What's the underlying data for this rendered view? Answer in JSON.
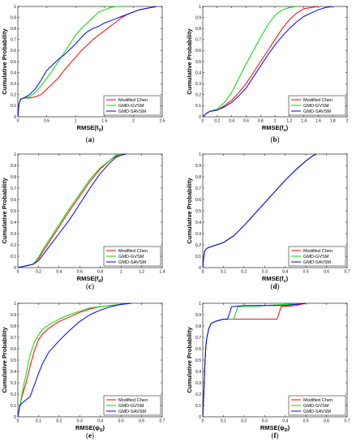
{
  "figure": {
    "colors": {
      "Modified Chen": "#ff0000",
      "GMD-GVSM": "#00dd00",
      "GMD-SAVSM": "#0000ee"
    }
  },
  "chart_data": [
    {
      "id": "a",
      "type": "line",
      "caption": "(a)",
      "ylabel": "Cumulative Probability",
      "xlabel": "RMSE(f_V)",
      "xlabel_main": "RMSE(f",
      "xlabel_sub": "V",
      "xlabel_end": ")",
      "xlim": [
        0,
        2.5
      ],
      "ylim": [
        0,
        1
      ],
      "xticks": [
        "0",
        "0.5",
        "1",
        "1.5",
        "2",
        "2.5"
      ],
      "xtick_vals": [
        0,
        0.5,
        1,
        1.5,
        2,
        2.5
      ],
      "yticks": [
        "0",
        "0.1",
        "0.2",
        "0.3",
        "0.4",
        "0.5",
        "0.6",
        "0.7",
        "0.8",
        "0.9",
        "1"
      ],
      "legend": [
        "Modified Chen",
        "GMD-GVSM",
        "GMD-SAVSM"
      ],
      "legend_position": "bottom-right",
      "series": [
        {
          "name": "Modified Chen",
          "color": "#ff0000",
          "x": [
            0,
            0.02,
            0.05,
            0.1,
            0.2,
            0.3,
            0.4,
            0.5,
            0.6,
            0.7,
            0.8,
            0.9,
            1.0,
            1.1,
            1.2,
            1.3,
            1.4,
            1.5,
            1.6,
            1.7,
            1.8,
            1.9,
            2.0,
            2.1,
            2.2,
            2.3,
            2.4
          ],
          "y": [
            0,
            0.12,
            0.16,
            0.17,
            0.17,
            0.18,
            0.2,
            0.25,
            0.3,
            0.35,
            0.42,
            0.48,
            0.54,
            0.6,
            0.65,
            0.7,
            0.74,
            0.78,
            0.82,
            0.86,
            0.9,
            0.93,
            0.95,
            0.97,
            0.98,
            0.99,
            1.0
          ]
        },
        {
          "name": "GMD-GVSM",
          "color": "#00dd00",
          "x": [
            0,
            0.02,
            0.05,
            0.1,
            0.2,
            0.3,
            0.4,
            0.5,
            0.6,
            0.7,
            0.8,
            0.9,
            1.0,
            1.1,
            1.2,
            1.3,
            1.4,
            1.5,
            1.6,
            1.7,
            1.8
          ],
          "y": [
            0,
            0.12,
            0.16,
            0.17,
            0.18,
            0.22,
            0.28,
            0.35,
            0.42,
            0.5,
            0.58,
            0.66,
            0.74,
            0.8,
            0.85,
            0.9,
            0.95,
            0.97,
            0.99,
            1.0,
            1.0
          ]
        },
        {
          "name": "GMD-SAVSM",
          "color": "#0000ee",
          "x": [
            0,
            0.02,
            0.05,
            0.1,
            0.2,
            0.3,
            0.4,
            0.5,
            0.6,
            0.7,
            0.8,
            0.9,
            1.0,
            1.1,
            1.2,
            1.3,
            1.4,
            1.5,
            1.6,
            1.7,
            1.8,
            1.9,
            2.0,
            2.1,
            2.2,
            2.3,
            2.4
          ],
          "y": [
            0,
            0.12,
            0.16,
            0.17,
            0.2,
            0.25,
            0.33,
            0.42,
            0.47,
            0.52,
            0.56,
            0.61,
            0.66,
            0.72,
            0.77,
            0.8,
            0.82,
            0.85,
            0.87,
            0.89,
            0.91,
            0.93,
            0.95,
            0.97,
            0.98,
            0.99,
            1.0
          ]
        }
      ]
    },
    {
      "id": "b",
      "type": "line",
      "caption": "(b)",
      "ylabel": "Cumulative Probability",
      "xlabel": "RMSE(f_s)",
      "xlabel_main": "RMSE(f",
      "xlabel_sub": "s",
      "xlabel_end": ")",
      "xlim": [
        0,
        2
      ],
      "ylim": [
        0,
        1
      ],
      "xticks": [
        "0",
        "0.2",
        "0.4",
        "0.6",
        "0.8",
        "1",
        "1.2",
        "1.4",
        "1.6",
        "1.8",
        "2"
      ],
      "xtick_vals": [
        0,
        0.2,
        0.4,
        0.6,
        0.8,
        1,
        1.2,
        1.4,
        1.6,
        1.8,
        2
      ],
      "yticks": [
        "0",
        "0.1",
        "0.2",
        "0.3",
        "0.4",
        "0.5",
        "0.6",
        "0.7",
        "0.8",
        "0.9",
        "1"
      ],
      "legend": [
        "Modified Chen",
        "GMD-GVSM",
        "GMD-SAVSM"
      ],
      "legend_position": "bottom-right",
      "series": [
        {
          "name": "Modified Chen",
          "color": "#ff0000",
          "x": [
            0,
            0.05,
            0.1,
            0.2,
            0.3,
            0.4,
            0.5,
            0.6,
            0.7,
            0.8,
            0.9,
            1.0,
            1.1,
            1.2,
            1.3,
            1.4,
            1.5,
            1.6
          ],
          "y": [
            0,
            0.03,
            0.05,
            0.06,
            0.1,
            0.15,
            0.22,
            0.3,
            0.4,
            0.5,
            0.6,
            0.7,
            0.8,
            0.88,
            0.94,
            0.98,
            0.99,
            1.0
          ]
        },
        {
          "name": "GMD-GVSM",
          "color": "#00dd00",
          "x": [
            0,
            0.05,
            0.1,
            0.2,
            0.3,
            0.4,
            0.5,
            0.6,
            0.7,
            0.8,
            0.9,
            1.0,
            1.1,
            1.2,
            1.3
          ],
          "y": [
            0,
            0.03,
            0.05,
            0.07,
            0.13,
            0.22,
            0.35,
            0.48,
            0.6,
            0.72,
            0.83,
            0.92,
            0.97,
            0.99,
            1.0
          ]
        },
        {
          "name": "GMD-SAVSM",
          "color": "#0000ee",
          "x": [
            0,
            0.05,
            0.1,
            0.2,
            0.3,
            0.4,
            0.5,
            0.6,
            0.7,
            0.8,
            0.9,
            1.0,
            1.1,
            1.2,
            1.3,
            1.4,
            1.5,
            1.6,
            1.7,
            1.8
          ],
          "y": [
            0,
            0.03,
            0.05,
            0.06,
            0.09,
            0.13,
            0.19,
            0.26,
            0.36,
            0.46,
            0.56,
            0.65,
            0.73,
            0.8,
            0.86,
            0.91,
            0.94,
            0.97,
            0.99,
            1.0
          ]
        }
      ]
    },
    {
      "id": "c",
      "type": "line",
      "caption": "(c)",
      "ylabel": "Cumulative Probability",
      "xlabel": "RMSE(f_d)",
      "xlabel_main": "RMSE(f",
      "xlabel_sub": "d",
      "xlabel_end": ")",
      "xlim": [
        0,
        1.4
      ],
      "ylim": [
        0,
        1
      ],
      "xticks": [
        "0",
        "0.2",
        "0.4",
        "0.6",
        "0.8",
        "1",
        "1.2",
        "1.4"
      ],
      "xtick_vals": [
        0,
        0.2,
        0.4,
        0.6,
        0.8,
        1,
        1.2,
        1.4
      ],
      "yticks": [
        "0",
        "0.1",
        "0.2",
        "0.3",
        "0.4",
        "0.5",
        "0.6",
        "0.7",
        "0.8",
        "0.9",
        "1"
      ],
      "legend": [
        "Modified Chen",
        "GMD-GVSM",
        "GMD-SAVSM"
      ],
      "legend_position": "bottom-right",
      "series": [
        {
          "name": "Modified Chen",
          "color": "#ff0000",
          "x": [
            0,
            0.1,
            0.15,
            0.2,
            0.25,
            0.3,
            0.4,
            0.5,
            0.6,
            0.7,
            0.8,
            0.9,
            0.95,
            1.0,
            1.05
          ],
          "y": [
            0,
            0.02,
            0.03,
            0.08,
            0.15,
            0.22,
            0.36,
            0.5,
            0.63,
            0.76,
            0.87,
            0.95,
            0.98,
            1.0,
            1.0
          ]
        },
        {
          "name": "GMD-GVSM",
          "color": "#00dd00",
          "x": [
            0,
            0.1,
            0.15,
            0.2,
            0.25,
            0.3,
            0.4,
            0.5,
            0.6,
            0.7,
            0.8,
            0.9,
            0.95,
            1.0
          ],
          "y": [
            0,
            0.02,
            0.03,
            0.09,
            0.17,
            0.24,
            0.38,
            0.52,
            0.65,
            0.78,
            0.88,
            0.95,
            0.99,
            1.0
          ]
        },
        {
          "name": "GMD-SAVSM",
          "color": "#0000ee",
          "x": [
            0,
            0.1,
            0.15,
            0.2,
            0.25,
            0.3,
            0.4,
            0.5,
            0.6,
            0.7,
            0.8,
            0.9,
            0.95,
            1.0,
            1.05
          ],
          "y": [
            0,
            0.02,
            0.03,
            0.06,
            0.12,
            0.18,
            0.3,
            0.42,
            0.56,
            0.7,
            0.83,
            0.93,
            0.97,
            0.99,
            1.0
          ]
        }
      ]
    },
    {
      "id": "d",
      "type": "line",
      "caption": "(d)",
      "ylabel": "Cumulative Probability",
      "xlabel": "RMSE(f_c)",
      "xlabel_main": "RMSE(f",
      "xlabel_sub": "c",
      "xlabel_end": ")",
      "xlim": [
        0,
        0.7
      ],
      "ylim": [
        0,
        1
      ],
      "xticks": [
        "0",
        "0.1",
        "0.2",
        "0.3",
        "0.4",
        "0.5",
        "0.6",
        "0.7"
      ],
      "xtick_vals": [
        0,
        0.1,
        0.2,
        0.3,
        0.4,
        0.5,
        0.6,
        0.7
      ],
      "yticks": [
        "0",
        "0.1",
        "0.2",
        "0.3",
        "0.4",
        "0.5",
        "0.6",
        "0.7",
        "0.8",
        "0.9",
        "1"
      ],
      "legend": [
        "Modified Chen",
        "GMD-GVSM",
        "GMD-SAVSM"
      ],
      "legend_position": "bottom-right",
      "series": [
        {
          "name": "Modified Chen",
          "color": "#ff0000",
          "x": [
            0,
            0.005,
            0.01,
            0.02,
            0.05,
            0.1,
            0.15,
            0.2,
            0.25,
            0.3,
            0.35,
            0.4,
            0.45,
            0.5,
            0.53,
            0.55
          ],
          "y": [
            0,
            0.1,
            0.15,
            0.17,
            0.19,
            0.22,
            0.28,
            0.37,
            0.47,
            0.57,
            0.67,
            0.77,
            0.86,
            0.94,
            0.98,
            1.0
          ]
        },
        {
          "name": "GMD-GVSM",
          "color": "#00dd00",
          "x": [
            0,
            0.005,
            0.01,
            0.02,
            0.05,
            0.1,
            0.15,
            0.2,
            0.25,
            0.3,
            0.35,
            0.4,
            0.45,
            0.5,
            0.53,
            0.55
          ],
          "y": [
            0,
            0.1,
            0.15,
            0.17,
            0.19,
            0.22,
            0.28,
            0.37,
            0.47,
            0.57,
            0.67,
            0.77,
            0.86,
            0.94,
            0.98,
            1.0
          ]
        },
        {
          "name": "GMD-SAVSM",
          "color": "#0000ee",
          "x": [
            0,
            0.005,
            0.01,
            0.02,
            0.05,
            0.1,
            0.15,
            0.2,
            0.25,
            0.3,
            0.35,
            0.4,
            0.45,
            0.5,
            0.53,
            0.55
          ],
          "y": [
            0,
            0.1,
            0.15,
            0.17,
            0.19,
            0.22,
            0.28,
            0.37,
            0.47,
            0.57,
            0.67,
            0.77,
            0.86,
            0.94,
            0.98,
            1.0
          ]
        }
      ]
    },
    {
      "id": "e",
      "type": "line",
      "caption": "(e)",
      "ylabel": "Cumulative Probability",
      "xlabel": "RMSE(ψ_S)",
      "xlabel_main": "RMSE(ψ",
      "xlabel_sub": "S",
      "xlabel_end": ")",
      "xlim": [
        0,
        0.7
      ],
      "ylim": [
        0,
        1
      ],
      "xticks": [
        "0",
        "0.1",
        "0.2",
        "0.3",
        "0.4",
        "0.5",
        "0.6",
        "0.7"
      ],
      "xtick_vals": [
        0,
        0.1,
        0.2,
        0.3,
        0.4,
        0.5,
        0.6,
        0.7
      ],
      "yticks": [
        "0",
        "0.1",
        "0.2",
        "0.3",
        "0.4",
        "0.5",
        "0.6",
        "0.7",
        "0.8",
        "0.9",
        "1"
      ],
      "legend": [
        "Modified Chen",
        "GMD-GVSM",
        "GMD-SAVSM"
      ],
      "legend_position": "bottom-right",
      "series": [
        {
          "name": "Modified Chen",
          "color": "#ff0000",
          "x": [
            0,
            0.005,
            0.01,
            0.02,
            0.04,
            0.06,
            0.08,
            0.1,
            0.12,
            0.15,
            0.2,
            0.25,
            0.3,
            0.35,
            0.4,
            0.45,
            0.5,
            0.55
          ],
          "y": [
            0,
            0.05,
            0.1,
            0.18,
            0.3,
            0.45,
            0.58,
            0.68,
            0.73,
            0.78,
            0.84,
            0.88,
            0.92,
            0.95,
            0.97,
            0.98,
            0.99,
            1.0
          ]
        },
        {
          "name": "GMD-GVSM",
          "color": "#00dd00",
          "x": [
            0,
            0.005,
            0.01,
            0.02,
            0.04,
            0.06,
            0.08,
            0.1,
            0.12,
            0.15,
            0.2,
            0.25,
            0.3,
            0.35,
            0.4,
            0.45,
            0.5,
            0.55
          ],
          "y": [
            0,
            0.05,
            0.1,
            0.2,
            0.38,
            0.55,
            0.66,
            0.72,
            0.77,
            0.81,
            0.86,
            0.9,
            0.93,
            0.96,
            0.97,
            0.98,
            0.99,
            1.0
          ]
        },
        {
          "name": "GMD-SAVSM",
          "color": "#0000ee",
          "x": [
            0,
            0.005,
            0.01,
            0.02,
            0.04,
            0.06,
            0.08,
            0.1,
            0.12,
            0.15,
            0.2,
            0.25,
            0.3,
            0.35,
            0.4,
            0.45,
            0.5,
            0.55
          ],
          "y": [
            0,
            0.05,
            0.1,
            0.12,
            0.15,
            0.18,
            0.28,
            0.38,
            0.47,
            0.57,
            0.67,
            0.76,
            0.84,
            0.9,
            0.94,
            0.97,
            0.99,
            1.0
          ]
        }
      ]
    },
    {
      "id": "f",
      "type": "line",
      "caption": "(f)",
      "ylabel": "Cumulative Probability",
      "xlabel": "RMSE(ψ_D)",
      "xlabel_main": "RMSE(ψ",
      "xlabel_sub": "D",
      "xlabel_end": ")",
      "xlim": [
        0,
        0.7
      ],
      "ylim": [
        0,
        1
      ],
      "xticks": [
        "0",
        "0.1",
        "0.2",
        "0.3",
        "0.4",
        "0.5",
        "0.6",
        "0.7"
      ],
      "xtick_vals": [
        0,
        0.1,
        0.2,
        0.3,
        0.4,
        0.5,
        0.6,
        0.7
      ],
      "yticks": [
        "0",
        "0.1",
        "0.2",
        "0.3",
        "0.4",
        "0.5",
        "0.6",
        "0.7",
        "0.8",
        "0.9",
        "1"
      ],
      "legend": [
        "Modified Chen",
        "GMD-GVSM",
        "GMD-SAVSM"
      ],
      "legend_position": "bottom-right",
      "series": [
        {
          "name": "Modified Chen",
          "color": "#ff0000",
          "x": [
            0,
            0.005,
            0.01,
            0.015,
            0.02,
            0.03,
            0.04,
            0.06,
            0.08,
            0.1,
            0.15,
            0.2,
            0.25,
            0.3,
            0.36,
            0.38,
            0.45,
            0.5
          ],
          "y": [
            0,
            0.2,
            0.45,
            0.62,
            0.7,
            0.78,
            0.82,
            0.84,
            0.85,
            0.86,
            0.86,
            0.86,
            0.86,
            0.86,
            0.86,
            0.97,
            0.98,
            1.0
          ]
        },
        {
          "name": "GMD-GVSM",
          "color": "#00dd00",
          "x": [
            0,
            0.005,
            0.01,
            0.015,
            0.02,
            0.03,
            0.04,
            0.06,
            0.08,
            0.1,
            0.15,
            0.17,
            0.2,
            0.25,
            0.3,
            0.4,
            0.5
          ],
          "y": [
            0,
            0.2,
            0.45,
            0.62,
            0.7,
            0.78,
            0.82,
            0.84,
            0.85,
            0.86,
            0.86,
            0.97,
            0.97,
            0.97,
            0.98,
            0.99,
            1.0
          ]
        },
        {
          "name": "GMD-SAVSM",
          "color": "#0000ee",
          "x": [
            0,
            0.005,
            0.01,
            0.015,
            0.02,
            0.03,
            0.04,
            0.06,
            0.08,
            0.1,
            0.12,
            0.14,
            0.2,
            0.3,
            0.4,
            0.45,
            0.5
          ],
          "y": [
            0,
            0.2,
            0.45,
            0.62,
            0.7,
            0.78,
            0.82,
            0.84,
            0.85,
            0.86,
            0.86,
            0.97,
            0.98,
            0.98,
            0.98,
            0.99,
            1.0
          ]
        }
      ]
    }
  ]
}
